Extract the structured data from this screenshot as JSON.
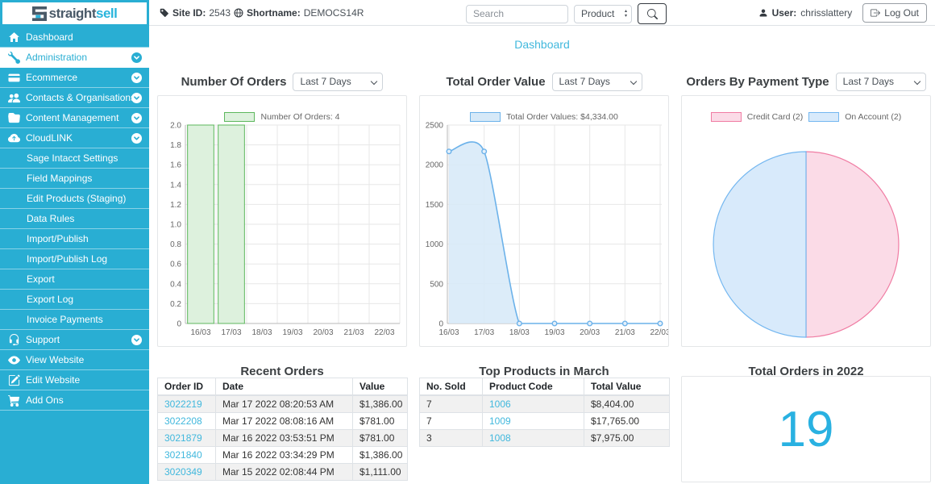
{
  "brand": {
    "logo_part1": "straight",
    "logo_part2": "sell"
  },
  "colors": {
    "sidebar": "#29aed3",
    "accent": "#41b8dd",
    "logo_dark": "#4a5a68",
    "stat_number": "#29b1e1"
  },
  "topbar": {
    "site_id_label": "Site ID:",
    "site_id": "2543",
    "shortname_label": "Shortname:",
    "shortname": "DEMOCS14R",
    "search_placeholder": "Search",
    "search_type_selected": "Product",
    "user_label": "User:",
    "user_name": "chrisslattery",
    "logout_label": "Log Out"
  },
  "sidebar": {
    "items": [
      {
        "label": "Dashboard"
      },
      {
        "label": "Administration"
      },
      {
        "label": "Ecommerce"
      },
      {
        "label": "Contacts & Organisations"
      },
      {
        "label": "Content Management"
      },
      {
        "label": "CloudLINK"
      },
      {
        "label": "Sage Intacct Settings"
      },
      {
        "label": "Field Mappings"
      },
      {
        "label": "Edit Products (Staging)"
      },
      {
        "label": "Data Rules"
      },
      {
        "label": "Import/Publish"
      },
      {
        "label": "Import/Publish Log"
      },
      {
        "label": "Export"
      },
      {
        "label": "Export Log"
      },
      {
        "label": "Invoice Payments"
      },
      {
        "label": "Support"
      },
      {
        "label": "View Website"
      },
      {
        "label": "Edit Website"
      },
      {
        "label": "Add Ons"
      }
    ]
  },
  "page": {
    "title": "Dashboard"
  },
  "panels": [
    {
      "title": "Number Of Orders",
      "range": "Last 7 Days"
    },
    {
      "title": "Total Order Value",
      "range": "Last 7 Days"
    },
    {
      "title": "Orders By Payment Type",
      "range": "Last 7 Days"
    }
  ],
  "chart_data": [
    {
      "type": "bar",
      "title": "Number Of Orders",
      "legend": "Number Of Orders: 4",
      "legend_position": "top",
      "categories": [
        "16/03",
        "17/03",
        "18/03",
        "19/03",
        "20/03",
        "21/03",
        "22/03"
      ],
      "values": [
        2,
        2,
        0,
        0,
        0,
        0,
        0
      ],
      "ylim": [
        0,
        2
      ],
      "ytick_step": 0.2,
      "grid": true,
      "fill": "#ddf1dd",
      "border": "#5db75d"
    },
    {
      "type": "line",
      "title": "Total Order Value",
      "legend": "Total Order Values: $4,334.00",
      "legend_position": "top",
      "categories": [
        "16/03",
        "17/03",
        "18/03",
        "19/03",
        "20/03",
        "21/03",
        "22/03"
      ],
      "values": [
        2167,
        2167,
        0,
        0,
        0,
        0,
        0
      ],
      "ylim": [
        0,
        2500
      ],
      "ytick_step": 500,
      "grid": true,
      "fill": "#d6e9f8",
      "border": "#6cb2ea"
    },
    {
      "type": "pie",
      "title": "Orders By Payment Type",
      "legend_position": "top",
      "slices": [
        {
          "label": "Credit Card (2)",
          "value": 2,
          "fill": "#fbdbe7",
          "border": "#f07ca3"
        },
        {
          "label": "On Account (2)",
          "value": 2,
          "fill": "#d8eafb",
          "border": "#74b7f0"
        }
      ]
    }
  ],
  "tables": {
    "recent_orders": {
      "title": "Recent Orders",
      "headers": [
        "Order ID",
        "Date",
        "Value"
      ],
      "rows": [
        [
          "3022219",
          "Mar 17 2022 08:20:53 AM",
          "$1,386.00"
        ],
        [
          "3022208",
          "Mar 17 2022 08:08:16 AM",
          "$781.00"
        ],
        [
          "3021879",
          "Mar 16 2022 03:53:51 PM",
          "$781.00"
        ],
        [
          "3021840",
          "Mar 16 2022 03:34:29 PM",
          "$1,386.00"
        ],
        [
          "3020349",
          "Mar 15 2022 02:08:44 PM",
          "$1,111.00"
        ]
      ]
    },
    "top_products": {
      "title": "Top Products in March",
      "headers": [
        "No. Sold",
        "Product Code",
        "Total Value"
      ],
      "rows": [
        [
          "7",
          "1006",
          "$8,404.00"
        ],
        [
          "7",
          "1009",
          "$17,765.00"
        ],
        [
          "3",
          "1008",
          "$7,975.00"
        ]
      ]
    }
  },
  "stat_card": {
    "title": "Total Orders in 2022",
    "value": "19"
  }
}
